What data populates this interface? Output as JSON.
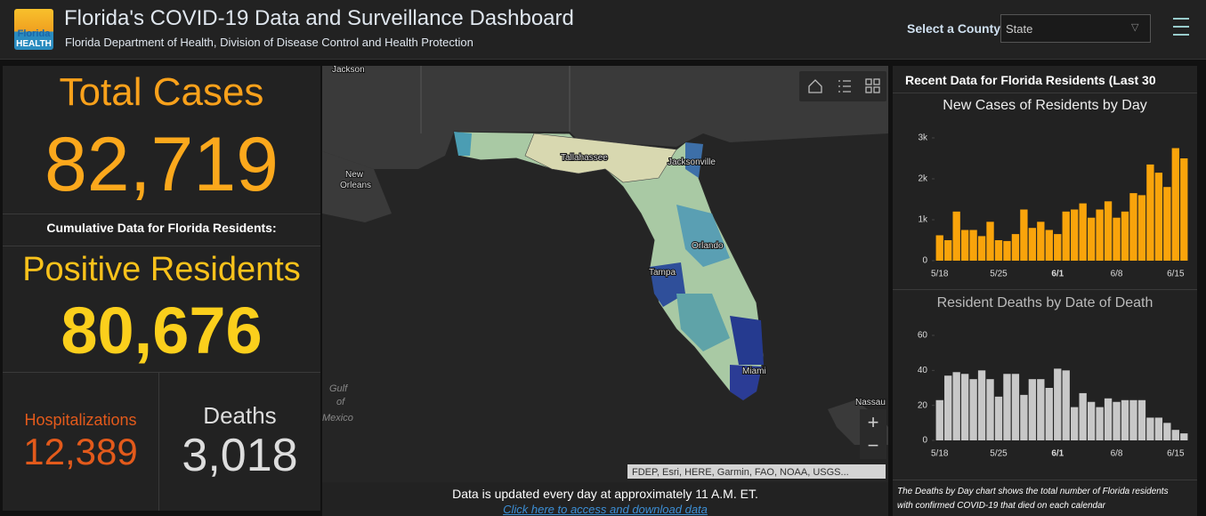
{
  "header": {
    "title": "Florida's COVID-19 Data and Surveillance Dashboard",
    "subtitle": "Florida Department of Health, Division of Disease Control and Health Protection",
    "logo": [
      "Florida",
      "HEALTH"
    ],
    "select_label": "Select a County",
    "select_value": "State"
  },
  "stats": {
    "total_cases": {
      "label": "Total Cases",
      "value": "82,719"
    },
    "cumulative_note": "Cumulative Data for Florida Residents:",
    "positive_residents": {
      "label": "Positive Residents",
      "value": "80,676"
    },
    "hospitalizations": {
      "label": "Hospitalizations",
      "value": "12,389"
    },
    "deaths": {
      "label": "Deaths",
      "value": "3,018"
    }
  },
  "map": {
    "labels": [
      "Jackson",
      "Tallahassee",
      "Jacksonville",
      "New",
      "Orleans",
      "Orlando",
      "Tampa",
      "Miami",
      "Gulf",
      "of",
      "Mexico",
      "Nassau"
    ],
    "attribution": "FDEP, Esri, HERE, Garmin, FAO, NOAA, USGS...",
    "zoom_in": "+",
    "zoom_out": "−"
  },
  "footer": {
    "update_note": "Data is updated every day at approximately 11 A.M. ET.",
    "link": "Click here to access and download data"
  },
  "right_panel": {
    "heading": "Recent Data for Florida Residents (Last 30",
    "charts": [
      {
        "type": "bar",
        "title": "New Cases of Residents by Day",
        "color": "#f9a40b",
        "categories": [
          "5/18",
          null,
          null,
          null,
          null,
          null,
          null,
          "5/25",
          null,
          null,
          null,
          null,
          null,
          null,
          "6/1",
          null,
          null,
          null,
          null,
          null,
          null,
          "6/8",
          null,
          null,
          null,
          null,
          null,
          null,
          "6/15",
          null
        ],
        "values": [
          620,
          500,
          1200,
          750,
          750,
          600,
          950,
          500,
          480,
          650,
          1250,
          800,
          950,
          750,
          650,
          1200,
          1250,
          1400,
          1050,
          1250,
          1450,
          1050,
          1200,
          1650,
          1600,
          2350,
          2150,
          1800,
          2750,
          2500
        ],
        "ylim": [
          0,
          3000
        ],
        "yticks": [
          0,
          {
            "value": 1000,
            "label": "1k"
          },
          {
            "value": 2000,
            "label": "2k"
          },
          {
            "value": 3000,
            "label": "3k"
          }
        ]
      },
      {
        "type": "bar",
        "title": "Resident Deaths by Date of Death",
        "color": "#c8c8c8",
        "categories": [
          "5/18",
          null,
          null,
          null,
          null,
          null,
          null,
          "5/25",
          null,
          null,
          null,
          null,
          null,
          null,
          "6/1",
          null,
          null,
          null,
          null,
          null,
          null,
          "6/8",
          null,
          null,
          null,
          null,
          null,
          null,
          "6/15",
          null
        ],
        "values": [
          23,
          37,
          39,
          38,
          35,
          40,
          35,
          25,
          38,
          38,
          26,
          35,
          35,
          30,
          41,
          40,
          19,
          27,
          22,
          19,
          24,
          22,
          23,
          23,
          23,
          13,
          13,
          10,
          6,
          4
        ],
        "ylim": [
          0,
          60
        ],
        "yticks": [
          0,
          20,
          40,
          60
        ]
      }
    ],
    "note": "The Deaths by Day chart shows the total number of Florida residents with confirmed COVID-19 that died on each calendar"
  }
}
